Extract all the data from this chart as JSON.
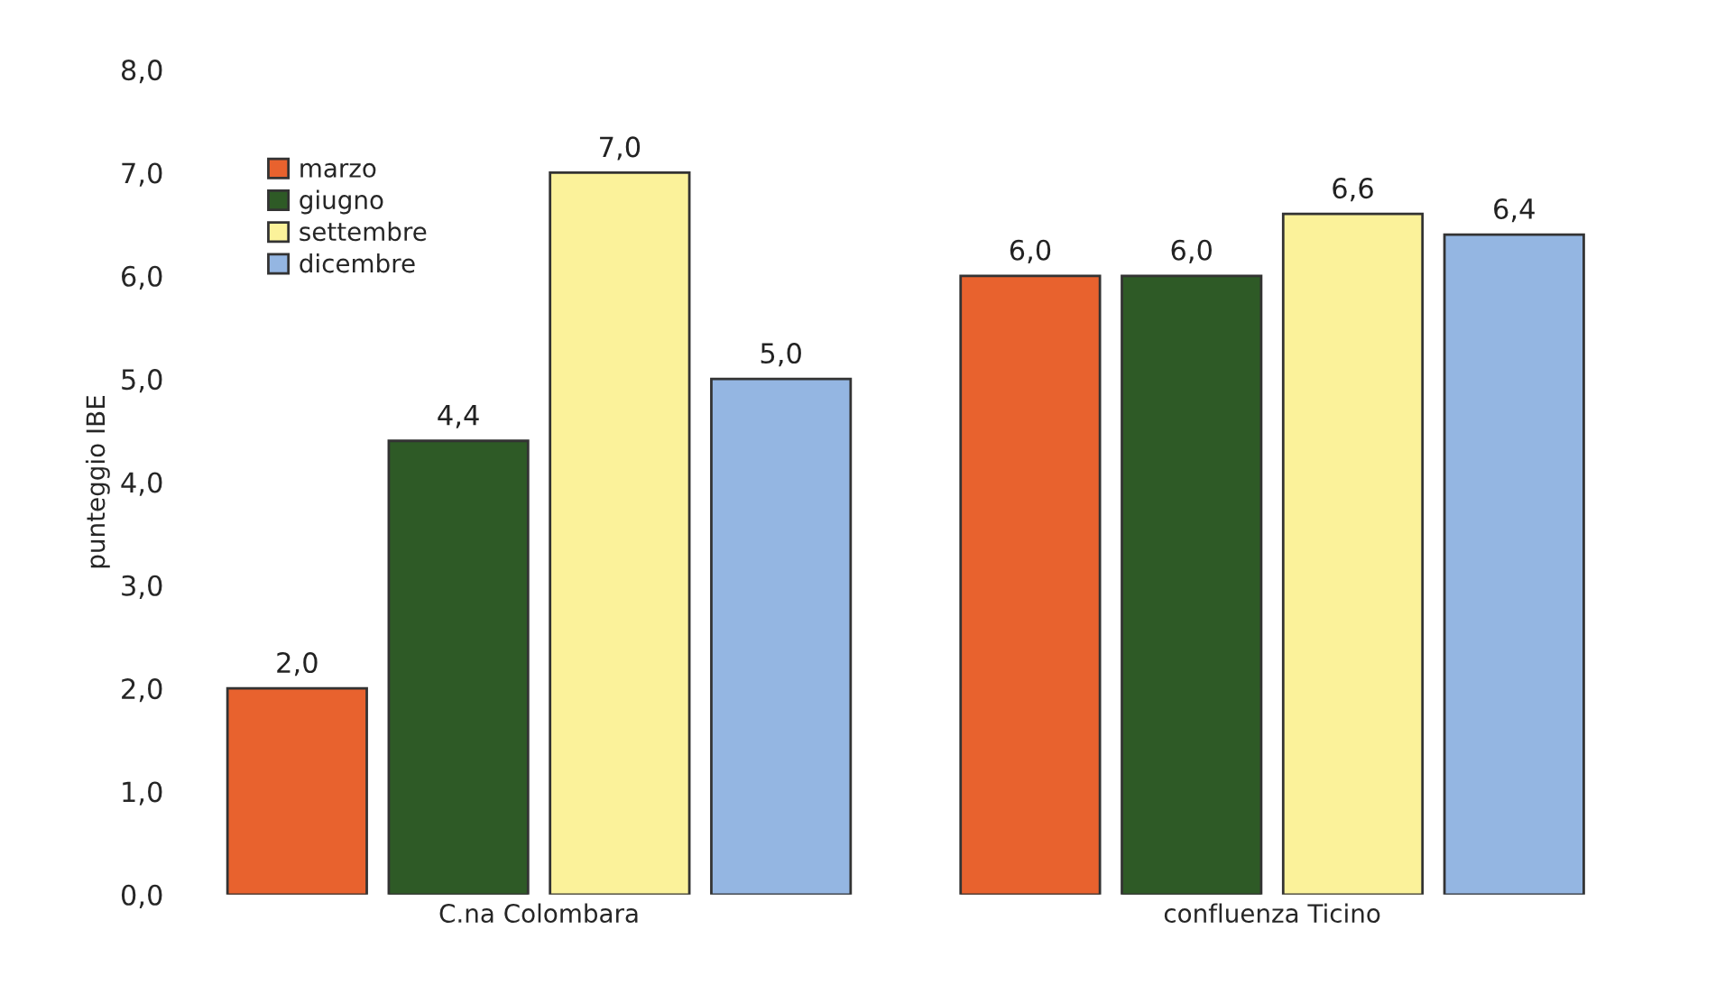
{
  "chart_data": {
    "type": "bar",
    "ylabel": "punteggio IBE",
    "categories": [
      "C.na Colombara",
      "confluenza Ticino"
    ],
    "series": [
      {
        "name": "marzo",
        "color": "#e8622e",
        "values": [
          2.0,
          6.0
        ],
        "value_labels": [
          "2,0",
          "6,0"
        ]
      },
      {
        "name": "giugno",
        "color": "#2e5a26",
        "values": [
          4.4,
          6.0
        ],
        "value_labels": [
          "4,4",
          "6,0"
        ]
      },
      {
        "name": "settembre",
        "color": "#fbf29a",
        "values": [
          7.0,
          6.6
        ],
        "value_labels": [
          "7,0",
          "6,6"
        ]
      },
      {
        "name": "dicembre",
        "color": "#94b6e2",
        "values": [
          5.0,
          6.4
        ],
        "value_labels": [
          "5,0",
          "6,4"
        ]
      }
    ],
    "ylim": [
      0,
      8
    ],
    "yticks": [
      {
        "value": 0,
        "label": "0,0"
      },
      {
        "value": 1,
        "label": "1,0"
      },
      {
        "value": 2,
        "label": "2,0"
      },
      {
        "value": 3,
        "label": "3,0"
      },
      {
        "value": 4,
        "label": "4,0"
      },
      {
        "value": 5,
        "label": "5,0"
      },
      {
        "value": 6,
        "label": "6,0"
      },
      {
        "value": 7,
        "label": "7,0"
      },
      {
        "value": 8,
        "label": "8,0"
      }
    ],
    "grid": false,
    "legend": "top left"
  }
}
